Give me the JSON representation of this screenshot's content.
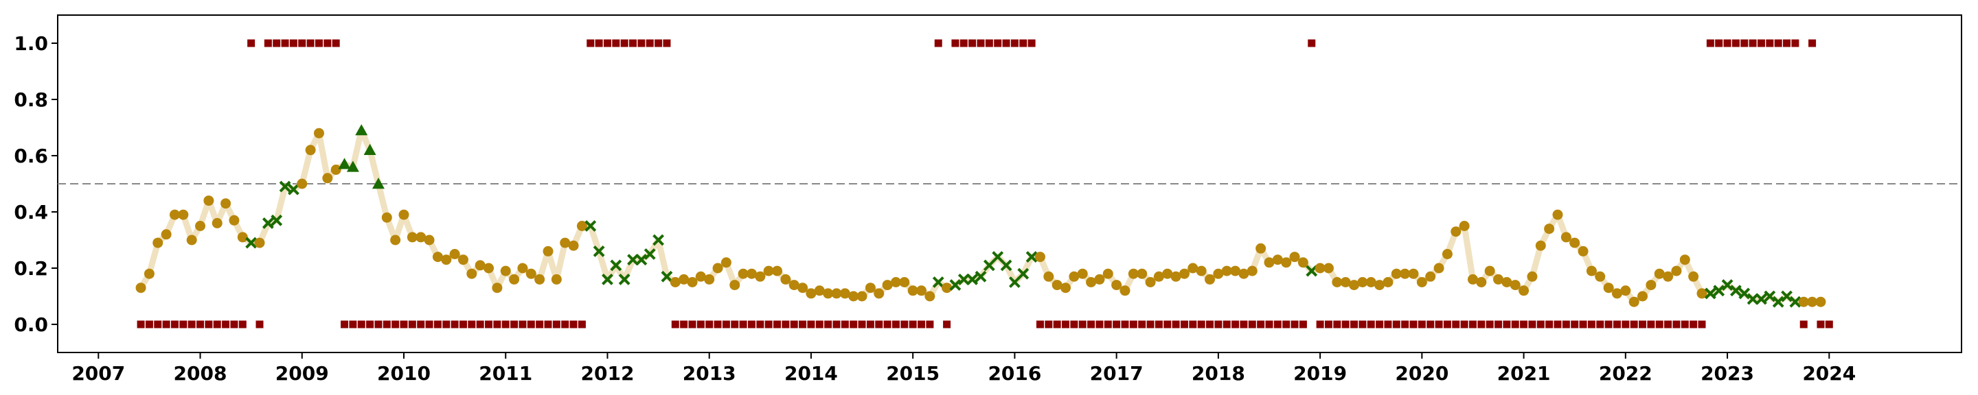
{
  "chart_data": {
    "type": "scatter",
    "title": "",
    "xlabel": "",
    "ylabel": "",
    "xlim": [
      2006.6,
      2025.3
    ],
    "ylim": [
      -0.1,
      1.1
    ],
    "grid": false,
    "legend": "none",
    "threshold": 0.5,
    "x_ticks": [
      2007,
      2008,
      2009,
      2010,
      2011,
      2012,
      2013,
      2014,
      2015,
      2016,
      2017,
      2018,
      2019,
      2020,
      2021,
      2022,
      2023,
      2024
    ],
    "x_tick_labels": [
      "2007",
      "2008",
      "2009",
      "2010",
      "2011",
      "2012",
      "2013",
      "2014",
      "2015",
      "2016",
      "2017",
      "2018",
      "2019",
      "2020",
      "2021",
      "2022",
      "2023",
      "2024"
    ],
    "y_ticks": [
      0.0,
      0.2,
      0.4,
      0.6,
      0.8,
      1.0
    ],
    "y_tick_labels": [
      "0.0",
      "0.2",
      "0.4",
      "0.6",
      "0.8",
      "1.0"
    ],
    "colors": {
      "circle": "#b8860b",
      "cross": "#1a6b00",
      "triangle": "#1a6b00",
      "square": "#8b0000",
      "line": "#f0e2c0",
      "threshold": "#888888"
    },
    "start_year": 2007,
    "start_month": 6,
    "values": [
      0.13,
      0.18,
      0.29,
      0.32,
      0.39,
      0.39,
      0.3,
      0.35,
      0.44,
      0.36,
      0.43,
      0.37,
      0.31,
      0.29,
      0.29,
      0.36,
      0.37,
      0.49,
      0.48,
      0.5,
      0.62,
      0.68,
      0.52,
      0.55,
      0.57,
      0.56,
      0.69,
      0.62,
      0.5,
      0.38,
      0.3,
      0.39,
      0.31,
      0.31,
      0.3,
      0.24,
      0.23,
      0.25,
      0.23,
      0.18,
      0.21,
      0.2,
      0.13,
      0.19,
      0.16,
      0.2,
      0.18,
      0.16,
      0.26,
      0.16,
      0.29,
      0.28,
      0.35,
      0.35,
      0.26,
      0.16,
      0.21,
      0.16,
      0.23,
      0.23,
      0.25,
      0.3,
      0.17,
      0.15,
      0.16,
      0.15,
      0.17,
      0.16,
      0.2,
      0.22,
      0.14,
      0.18,
      0.18,
      0.17,
      0.19,
      0.19,
      0.16,
      0.14,
      0.13,
      0.11,
      0.12,
      0.11,
      0.11,
      0.11,
      0.1,
      0.1,
      0.13,
      0.11,
      0.14,
      0.15,
      0.15,
      0.12,
      0.12,
      0.1,
      0.15,
      0.13,
      0.14,
      0.16,
      0.16,
      0.17,
      0.21,
      0.24,
      0.21,
      0.15,
      0.18,
      0.24,
      0.24,
      0.17,
      0.14,
      0.13,
      0.17,
      0.18,
      0.15,
      0.16,
      0.18,
      0.14,
      0.12,
      0.18,
      0.18,
      0.15,
      0.17,
      0.18,
      0.17,
      0.18,
      0.2,
      0.19,
      0.16,
      0.18,
      0.19,
      0.19,
      0.18,
      0.19,
      0.27,
      0.22,
      0.23,
      0.22,
      0.24,
      0.22,
      0.19,
      0.2,
      0.2,
      0.15,
      0.15,
      0.14,
      0.15,
      0.15,
      0.14,
      0.15,
      0.18,
      0.18,
      0.18,
      0.15,
      0.17,
      0.2,
      0.25,
      0.33,
      0.35,
      0.16,
      0.15,
      0.19,
      0.16,
      0.15,
      0.14,
      0.12,
      0.17,
      0.28,
      0.34,
      0.39,
      0.31,
      0.29,
      0.26,
      0.19,
      0.17,
      0.13,
      0.11,
      0.12,
      0.08,
      0.1,
      0.14,
      0.18,
      0.17,
      0.19,
      0.23,
      0.17,
      0.11,
      0.11,
      0.12,
      0.14,
      0.12,
      0.11,
      0.09,
      0.09,
      0.1,
      0.08,
      0.1,
      0.08,
      0.08,
      0.08,
      0.08
    ],
    "markers": [
      "o",
      "o",
      "o",
      "o",
      "o",
      "o",
      "o",
      "o",
      "o",
      "o",
      "o",
      "o",
      "o",
      "x",
      "o",
      "x",
      "x",
      "x",
      "x",
      "o",
      "o",
      "o",
      "o",
      "o",
      "^",
      "^",
      "^",
      "^",
      "^",
      "o",
      "o",
      "o",
      "o",
      "o",
      "o",
      "o",
      "o",
      "o",
      "o",
      "o",
      "o",
      "o",
      "o",
      "o",
      "o",
      "o",
      "o",
      "o",
      "o",
      "o",
      "o",
      "o",
      "o",
      "x",
      "x",
      "x",
      "x",
      "x",
      "x",
      "x",
      "x",
      "x",
      "x",
      "o",
      "o",
      "o",
      "o",
      "o",
      "o",
      "o",
      "o",
      "o",
      "o",
      "o",
      "o",
      "o",
      "o",
      "o",
      "o",
      "o",
      "o",
      "o",
      "o",
      "o",
      "o",
      "o",
      "o",
      "o",
      "o",
      "o",
      "o",
      "o",
      "o",
      "o",
      "x",
      "o",
      "x",
      "x",
      "x",
      "x",
      "x",
      "x",
      "x",
      "x",
      "x",
      "x",
      "o",
      "o",
      "o",
      "o",
      "o",
      "o",
      "o",
      "o",
      "o",
      "o",
      "o",
      "o",
      "o",
      "o",
      "o",
      "o",
      "o",
      "o",
      "o",
      "o",
      "o",
      "o",
      "o",
      "o",
      "o",
      "o",
      "o",
      "o",
      "o",
      "o",
      "o",
      "o",
      "x",
      "o",
      "o",
      "o",
      "o",
      "o",
      "o",
      "o",
      "o",
      "o",
      "o",
      "o",
      "o",
      "o",
      "o",
      "o",
      "o",
      "o",
      "o",
      "o",
      "o",
      "o",
      "o",
      "o",
      "o",
      "o",
      "o",
      "o",
      "o",
      "o",
      "o",
      "o",
      "o",
      "o",
      "o",
      "o",
      "o",
      "o",
      "o",
      "o",
      "o",
      "o",
      "o",
      "o",
      "o",
      "o",
      "o",
      "x",
      "x",
      "x",
      "x",
      "x",
      "x",
      "x",
      "x",
      "x",
      "x",
      "x",
      "o",
      "o",
      "o"
    ],
    "regime": [
      0,
      0,
      0,
      0,
      0,
      0,
      0,
      0,
      0,
      0,
      0,
      0,
      0,
      1,
      0,
      1,
      1,
      1,
      1,
      1,
      1,
      1,
      1,
      1,
      0,
      0,
      0,
      0,
      0,
      0,
      0,
      0,
      0,
      0,
      0,
      0,
      0,
      0,
      0,
      0,
      0,
      0,
      0,
      0,
      0,
      0,
      0,
      0,
      0,
      0,
      0,
      0,
      0,
      1,
      1,
      1,
      1,
      1,
      1,
      1,
      1,
      1,
      1,
      0,
      0,
      0,
      0,
      0,
      0,
      0,
      0,
      0,
      0,
      0,
      0,
      0,
      0,
      0,
      0,
      0,
      0,
      0,
      0,
      0,
      0,
      0,
      0,
      0,
      0,
      0,
      0,
      0,
      0,
      0,
      1,
      0,
      1,
      1,
      1,
      1,
      1,
      1,
      1,
      1,
      1,
      1,
      0,
      0,
      0,
      0,
      0,
      0,
      0,
      0,
      0,
      0,
      0,
      0,
      0,
      0,
      0,
      0,
      0,
      0,
      0,
      0,
      0,
      0,
      0,
      0,
      0,
      0,
      0,
      0,
      0,
      0,
      0,
      0,
      1,
      0,
      0,
      0,
      0,
      0,
      0,
      0,
      0,
      0,
      0,
      0,
      0,
      0,
      0,
      0,
      0,
      0,
      0,
      0,
      0,
      0,
      0,
      0,
      0,
      0,
      0,
      0,
      0,
      0,
      0,
      0,
      0,
      0,
      0,
      0,
      0,
      0,
      0,
      0,
      0,
      0,
      0,
      0,
      0,
      0,
      0,
      1,
      1,
      1,
      1,
      1,
      1,
      1,
      1,
      1,
      1,
      1,
      0,
      1,
      0,
      0
    ]
  }
}
